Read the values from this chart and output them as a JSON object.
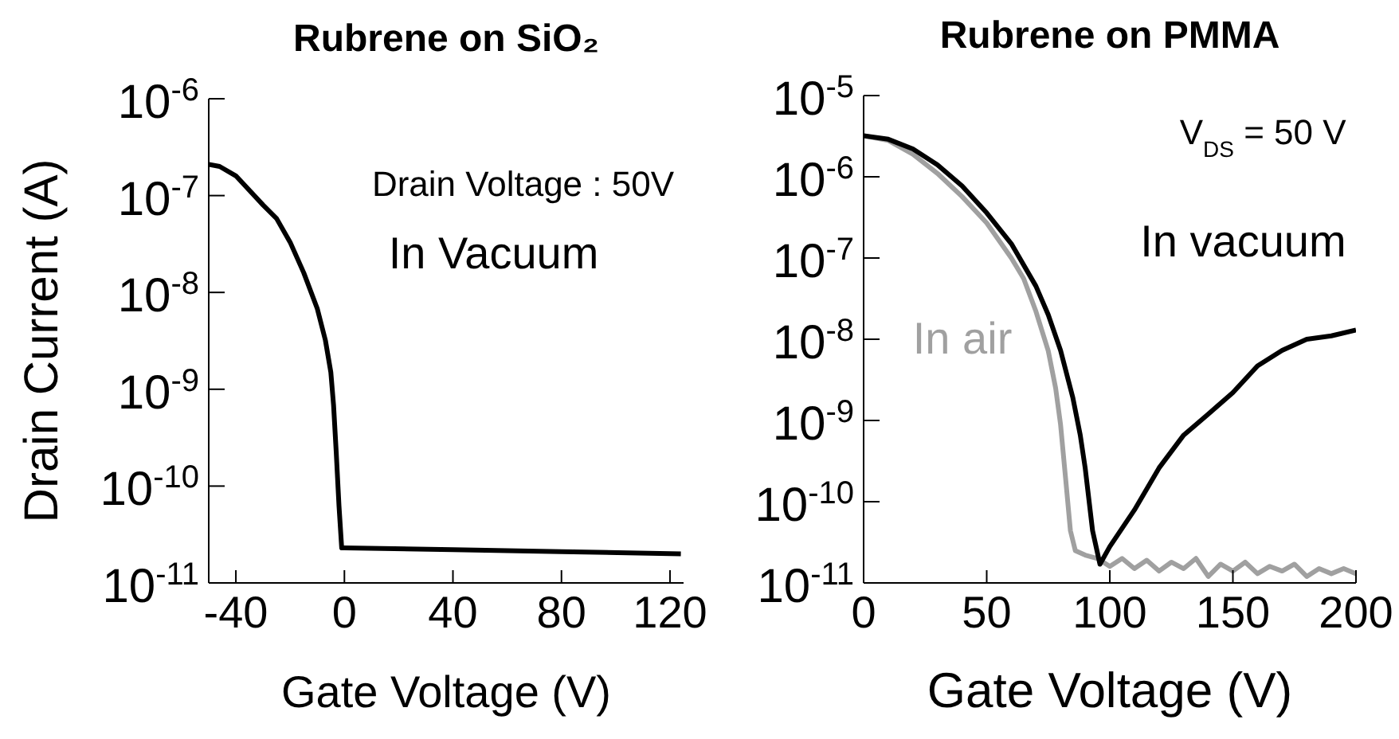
{
  "chart_data": [
    {
      "type": "line",
      "title": "Rubrene on SiO₂",
      "xlabel": "Gate Voltage (V)",
      "ylabel": "Drain Current (A)",
      "log": "y",
      "grid": false,
      "legend": false,
      "marker": "none",
      "line_style": "solid",
      "xlim": [
        -50,
        125
      ],
      "xticks": [
        -40,
        0,
        40,
        80,
        120
      ],
      "ylim": [
        1e-11,
        1e-06
      ],
      "yticks": [
        {
          "value": 1e-06,
          "label": "10$^{-6}$"
        },
        {
          "value": 1e-07,
          "label": "10$^{-7}$"
        },
        {
          "value": 1e-08,
          "label": "10$^{-8}$"
        },
        {
          "value": 1e-09,
          "label": "10$^{-9}$"
        },
        {
          "value": 1e-10,
          "label": "10$^{-10}$"
        },
        {
          "value": 1e-11,
          "label": "10$^{-11}$"
        }
      ],
      "annotations": [
        "Drain Voltage : 50V",
        "In Vacuum"
      ],
      "series": [
        {
          "color": "#000000",
          "x": [
            -50,
            -46,
            -40,
            -30,
            -25,
            -20,
            -15,
            -10,
            -7,
            -5,
            -4,
            -3,
            -2,
            -1,
            0,
            40,
            80,
            124
          ],
          "values": [
            2.1e-07,
            2e-07,
            1.6e-07,
            8e-08,
            5.8e-08,
            3.3e-08,
            1.6e-08,
            6.8e-09,
            3.2e-09,
            1.5e-09,
            6.9e-10,
            2.2e-10,
            6.3e-11,
            2.3e-11,
            2.3e-11,
            2.2e-11,
            2.1e-11,
            2e-11
          ]
        }
      ]
    },
    {
      "type": "line",
      "title": "Rubrene on PMMA",
      "xlabel": "Gate Voltage (V)",
      "log": "y",
      "grid": false,
      "legend": false,
      "marker": "none",
      "line_style": "solid",
      "xlim": [
        0,
        200
      ],
      "xticks": [
        0,
        50,
        100,
        150,
        200
      ],
      "ylim": [
        1e-11,
        1e-05
      ],
      "yticks": [
        {
          "value": 1e-05,
          "label": "10$^{-5}$"
        },
        {
          "value": 1e-06,
          "label": "10$^{-6}$"
        },
        {
          "value": 1e-07,
          "label": "10$^{-7}$"
        },
        {
          "value": 1e-08,
          "label": "10$^{-8}$"
        },
        {
          "value": 1e-09,
          "label": "10$^{-9}$"
        },
        {
          "value": 1e-10,
          "label": "10$^{-10}$"
        },
        {
          "value": 1e-11,
          "label": "10$^{-11}$"
        }
      ],
      "annotations": [
        "V$_{DS}$ = 50 V"
      ],
      "series": [
        {
          "name": "In air",
          "color": "#a0a0a0",
          "x": [
            0,
            10,
            20,
            30,
            40,
            50,
            60,
            65,
            70,
            75,
            78,
            80,
            82,
            84,
            86,
            90,
            95,
            100,
            105,
            110,
            115,
            120,
            125,
            130,
            135,
            140,
            145,
            150,
            155,
            160,
            165,
            170,
            175,
            180,
            185,
            190,
            195,
            200
          ],
          "values": [
            3.2e-06,
            2.8e-06,
            1.9e-06,
            1.1e-06,
            5.7e-07,
            2.7e-07,
            1e-07,
            5.6e-08,
            2.2e-08,
            7.2e-09,
            2.5e-09,
            8.9e-10,
            2e-10,
            4.4e-11,
            2.5e-11,
            2.2e-11,
            2e-11,
            1.6e-11,
            2e-11,
            1.5e-11,
            1.9e-11,
            1.4e-11,
            1.8e-11,
            1.5e-11,
            2e-11,
            1.2e-11,
            1.7e-11,
            1.4e-11,
            1.8e-11,
            1.3e-11,
            1.6e-11,
            1.4e-11,
            1.7e-11,
            1.2e-11,
            1.5e-11,
            1.3e-11,
            1.5e-11,
            1.3e-11
          ]
        },
        {
          "name": "In vacuum",
          "color": "#000000",
          "x": [
            0,
            10,
            20,
            30,
            40,
            50,
            60,
            70,
            75,
            80,
            85,
            88,
            90,
            93,
            96,
            100,
            110,
            120,
            130,
            140,
            150,
            160,
            170,
            180,
            190,
            200
          ],
          "values": [
            3.2e-06,
            2.9e-06,
            2.2e-06,
            1.4e-06,
            7.7e-07,
            3.6e-07,
            1.5e-07,
            4.5e-08,
            2e-08,
            7.3e-09,
            1.9e-09,
            6.6e-10,
            2.6e-10,
            4.4e-11,
            1.7e-11,
            2.8e-11,
            7.9e-11,
            2.6e-10,
            6.6e-10,
            1.2e-09,
            2.2e-09,
            4.7e-09,
            7.3e-09,
            1e-08,
            1.1e-08,
            1.3e-08
          ]
        }
      ]
    }
  ]
}
